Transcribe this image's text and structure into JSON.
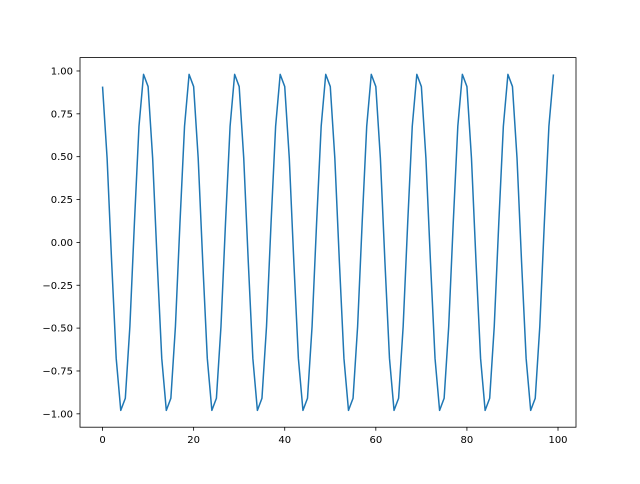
{
  "chart_data": {
    "type": "line",
    "title": "",
    "xlabel": "",
    "ylabel": "",
    "xlim": [
      -4.95,
      103.95
    ],
    "ylim": [
      -1.078,
      1.078
    ],
    "grid": false,
    "xticks": [
      0,
      20,
      40,
      60,
      80,
      100
    ],
    "xtick_labels": [
      "0",
      "20",
      "40",
      "60",
      "80",
      "100"
    ],
    "yticks": [
      -1.0,
      -0.75,
      -0.5,
      -0.25,
      0.0,
      0.25,
      0.5,
      0.75,
      1.0
    ],
    "ytick_labels": [
      "−1.00",
      "−0.75",
      "−0.50",
      "−0.25",
      "0.00",
      "0.25",
      "0.50",
      "0.75",
      "1.00"
    ],
    "series": [
      {
        "color": "#1f77b4",
        "x_start": 0,
        "x_step": 1,
        "values": [
          0.909,
          0.491,
          -0.115,
          -0.677,
          -0.98,
          -0.909,
          -0.491,
          0.115,
          0.677,
          0.98,
          0.909,
          0.491,
          -0.115,
          -0.677,
          -0.98,
          -0.909,
          -0.491,
          0.115,
          0.677,
          0.98,
          0.909,
          0.491,
          -0.115,
          -0.677,
          -0.98,
          -0.909,
          -0.491,
          0.115,
          0.677,
          0.98,
          0.909,
          0.491,
          -0.115,
          -0.677,
          -0.98,
          -0.909,
          -0.491,
          0.115,
          0.677,
          0.98,
          0.909,
          0.491,
          -0.115,
          -0.677,
          -0.98,
          -0.909,
          -0.491,
          0.115,
          0.677,
          0.98,
          0.909,
          0.491,
          -0.115,
          -0.677,
          -0.98,
          -0.909,
          -0.491,
          0.115,
          0.677,
          0.98,
          0.909,
          0.491,
          -0.115,
          -0.677,
          -0.98,
          -0.909,
          -0.491,
          0.115,
          0.677,
          0.98,
          0.909,
          0.491,
          -0.115,
          -0.677,
          -0.98,
          -0.909,
          -0.491,
          0.115,
          0.677,
          0.98,
          0.909,
          0.491,
          -0.115,
          -0.677,
          -0.98,
          -0.909,
          -0.491,
          0.115,
          0.677,
          0.98,
          0.909,
          0.491,
          -0.115,
          -0.677,
          -0.98,
          -0.909,
          -0.491,
          0.115,
          0.677,
          0.98
        ]
      }
    ]
  }
}
